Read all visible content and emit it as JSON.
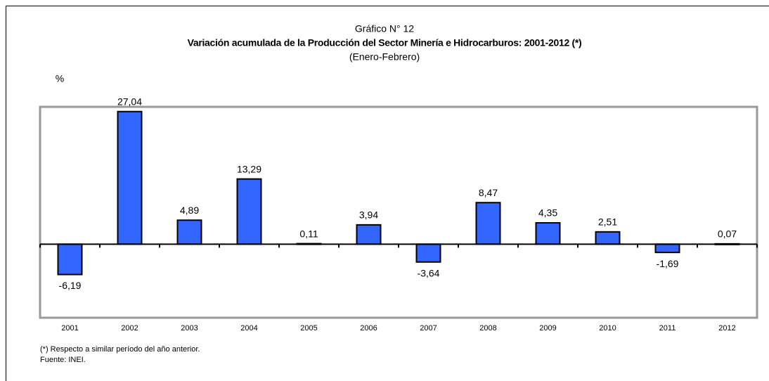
{
  "chart_data": {
    "type": "bar",
    "title": "Gráfico N° 12",
    "subtitle": "Variación acumulada de la Producción del Sector Minería e Hidrocarburos: 2001-2012 (*)",
    "period": "(Enero-Febrero)",
    "y_label": "%",
    "categories": [
      "2001",
      "2002",
      "2003",
      "2004",
      "2005",
      "2006",
      "2007",
      "2008",
      "2009",
      "2010",
      "2011",
      "2012"
    ],
    "values": [
      -6.19,
      27.04,
      4.89,
      13.29,
      0.11,
      3.94,
      -3.64,
      8.47,
      4.35,
      2.51,
      -1.69,
      0.07
    ],
    "value_labels": [
      "-6,19",
      "27,04",
      "4,89",
      "13,29",
      "0,11",
      "3,94",
      "-3,64",
      "8,47",
      "4,35",
      "2,51",
      "-1,69",
      "0,07"
    ],
    "color": "#3366ff",
    "ylim": [
      -15,
      28
    ],
    "footnotes": [
      "(*) Respecto a similar período del año anterior.",
      "Fuente: INEI."
    ]
  }
}
